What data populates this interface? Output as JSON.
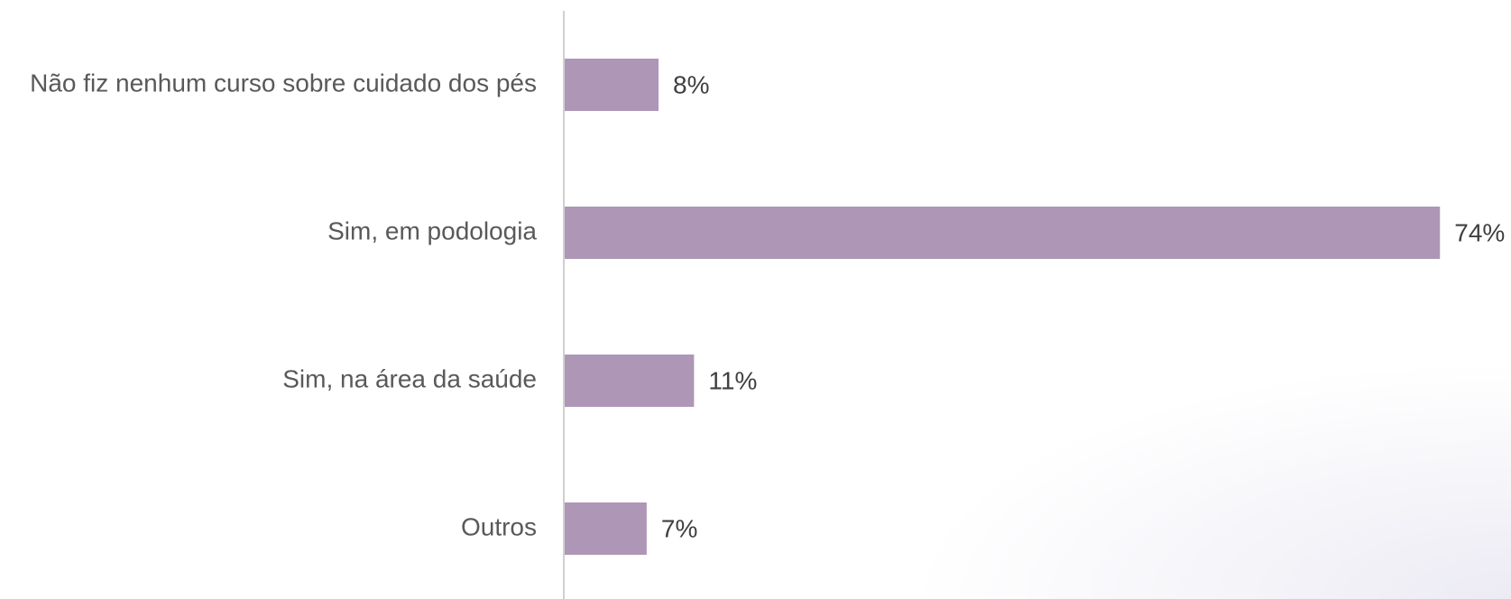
{
  "chart_data": {
    "type": "bar",
    "orientation": "horizontal",
    "categories": [
      "Não fiz nenhum curso sobre cuidado dos pés",
      "Sim, em podologia",
      "Sim, na área da saúde",
      "Outros"
    ],
    "values": [
      8,
      74,
      11,
      7
    ],
    "value_labels": [
      "8%",
      "74%",
      "11%",
      "7%"
    ],
    "color": "#ae96b7",
    "xlim": [
      0,
      80
    ]
  }
}
